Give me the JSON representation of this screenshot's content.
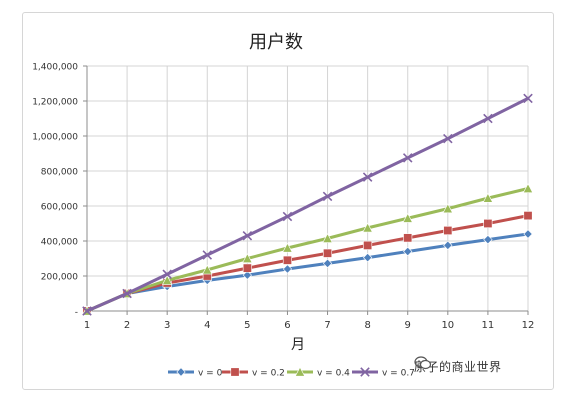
{
  "chart_data": {
    "type": "line",
    "title": "用户数",
    "xlabel": "月",
    "ylabel": "",
    "categories": [
      "1",
      "2",
      "3",
      "4",
      "5",
      "6",
      "7",
      "8",
      "9",
      "10",
      "11",
      "12"
    ],
    "x": [
      1,
      2,
      3,
      4,
      5,
      6,
      7,
      8,
      9,
      10,
      11,
      12
    ],
    "ylim": [
      0,
      1400000
    ],
    "yticks": [
      0,
      200000,
      400000,
      600000,
      800000,
      1000000,
      1200000,
      1400000
    ],
    "ytick_labels": [
      "-",
      "200,000",
      "400,000",
      "600,000",
      "800,000",
      "1,000,000",
      "1,200,000",
      "1,400,000"
    ],
    "grid": true,
    "legend_position": "bottom",
    "series": [
      {
        "name": "v = 0",
        "color": "#4f81bd",
        "marker": "diamond",
        "values": [
          0,
          100000,
          140000,
          175000,
          205000,
          240000,
          272000,
          305000,
          340000,
          375000,
          408000,
          440000
        ]
      },
      {
        "name": "v = 0.2",
        "color": "#c0504d",
        "marker": "square",
        "values": [
          0,
          100000,
          160000,
          200000,
          245000,
          290000,
          330000,
          375000,
          418000,
          460000,
          500000,
          545000
        ]
      },
      {
        "name": "v = 0.4",
        "color": "#9bbb59",
        "marker": "triangle",
        "values": [
          0,
          100000,
          175000,
          235000,
          300000,
          360000,
          415000,
          475000,
          530000,
          585000,
          645000,
          700000
        ]
      },
      {
        "name": "v = 0.7",
        "color": "#8064a2",
        "marker": "x",
        "values": [
          0,
          100000,
          210000,
          320000,
          430000,
          540000,
          655000,
          765000,
          875000,
          985000,
          1100000,
          1215000
        ]
      }
    ]
  },
  "watermark": {
    "text": "原子的商业世界",
    "icon": "wechat-icon"
  }
}
